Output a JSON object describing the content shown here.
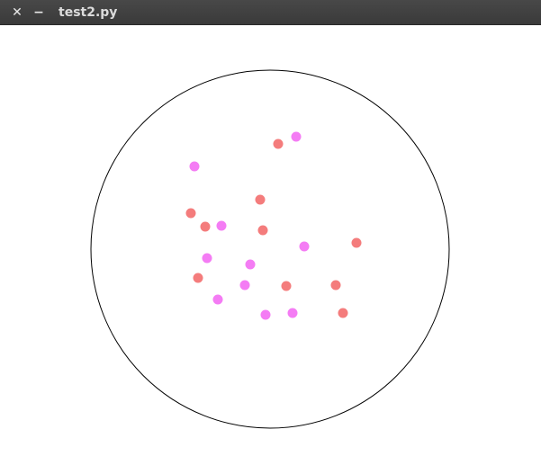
{
  "window": {
    "title": "test2.py",
    "close_glyph": "✕",
    "minimize_glyph": "−",
    "titlebar_color": "#3f3f3f"
  },
  "canvas": {
    "background": "#ffffff",
    "boundary_circle_color": "#000000",
    "red_color": "#f47c7c",
    "pink_color": "#f47cf4",
    "dot_count": 20
  }
}
